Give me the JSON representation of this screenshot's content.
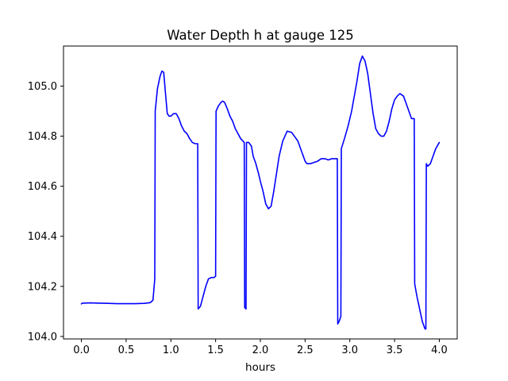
{
  "chart_data": {
    "type": "line",
    "title": "Water Depth h at gauge 125",
    "xlabel": "hours",
    "ylabel": "",
    "xlim": [
      -0.2,
      4.2
    ],
    "ylim": [
      103.99,
      105.16
    ],
    "xticks": [
      0.0,
      0.5,
      1.0,
      1.5,
      2.0,
      2.5,
      3.0,
      3.5,
      4.0
    ],
    "xtick_labels": [
      "0.0",
      "0.5",
      "1.0",
      "1.5",
      "2.0",
      "2.5",
      "3.0",
      "3.5",
      "4.0"
    ],
    "yticks": [
      104.0,
      104.2,
      104.4,
      104.6,
      104.8,
      105.0
    ],
    "ytick_labels": [
      "104.0",
      "104.2",
      "104.4",
      "104.6",
      "104.8",
      "105.0"
    ],
    "grid": false,
    "legend": "none",
    "series": [
      {
        "color": "#0000ff",
        "x": [
          0.0,
          0.01,
          0.1,
          0.2,
          0.3,
          0.4,
          0.5,
          0.6,
          0.7,
          0.77,
          0.8,
          0.82,
          0.825,
          0.85,
          0.88,
          0.9,
          0.92,
          0.94,
          0.96,
          0.98,
          1.0,
          1.03,
          1.06,
          1.09,
          1.12,
          1.15,
          1.18,
          1.21,
          1.24,
          1.27,
          1.3,
          1.305,
          1.33,
          1.36,
          1.39,
          1.42,
          1.45,
          1.48,
          1.5,
          1.505,
          1.53,
          1.56,
          1.58,
          1.6,
          1.63,
          1.66,
          1.69,
          1.72,
          1.75,
          1.78,
          1.82,
          1.825,
          1.84,
          1.845,
          1.87,
          1.9,
          1.92,
          1.95,
          1.98,
          2.0,
          2.03,
          2.06,
          2.09,
          2.12,
          2.15,
          2.18,
          2.21,
          2.25,
          2.3,
          2.35,
          2.38,
          2.42,
          2.46,
          2.5,
          2.52,
          2.56,
          2.6,
          2.64,
          2.68,
          2.72,
          2.76,
          2.8,
          2.84,
          2.86,
          2.865,
          2.88,
          2.9,
          2.905,
          2.94,
          2.98,
          3.02,
          3.05,
          3.08,
          3.11,
          3.14,
          3.17,
          3.2,
          3.23,
          3.26,
          3.29,
          3.32,
          3.35,
          3.38,
          3.41,
          3.44,
          3.47,
          3.5,
          3.53,
          3.56,
          3.6,
          3.63,
          3.66,
          3.69,
          3.72,
          3.725,
          3.75,
          3.78,
          3.81,
          3.84,
          3.85,
          3.855,
          3.87,
          3.9,
          3.93,
          3.96,
          4.0
        ],
        "y": [
          104.13,
          104.133,
          104.134,
          104.133,
          104.132,
          104.131,
          104.131,
          104.131,
          104.132,
          104.135,
          104.145,
          104.23,
          104.9,
          104.99,
          105.04,
          105.06,
          105.055,
          104.97,
          104.89,
          104.88,
          104.88,
          104.89,
          104.89,
          104.87,
          104.84,
          104.82,
          104.81,
          104.79,
          104.775,
          104.77,
          104.77,
          104.11,
          104.12,
          104.16,
          104.2,
          104.23,
          104.235,
          104.235,
          104.24,
          104.9,
          104.92,
          104.935,
          104.94,
          104.935,
          104.91,
          104.88,
          104.86,
          104.83,
          104.81,
          104.79,
          104.775,
          104.115,
          104.11,
          104.775,
          104.775,
          104.76,
          104.72,
          104.69,
          104.65,
          104.62,
          104.58,
          104.53,
          104.51,
          104.52,
          104.58,
          104.65,
          104.72,
          104.78,
          104.82,
          104.815,
          104.8,
          104.78,
          104.74,
          104.7,
          104.69,
          104.69,
          104.695,
          104.7,
          104.71,
          104.71,
          104.705,
          104.71,
          104.71,
          104.71,
          104.05,
          104.06,
          104.08,
          104.75,
          104.79,
          104.84,
          104.9,
          104.96,
          105.02,
          105.09,
          105.12,
          105.1,
          105.05,
          104.97,
          104.89,
          104.83,
          104.81,
          104.8,
          104.8,
          104.82,
          104.86,
          104.91,
          104.945,
          104.96,
          104.97,
          104.96,
          104.93,
          104.9,
          104.87,
          104.87,
          104.21,
          104.16,
          104.11,
          104.06,
          104.03,
          104.03,
          104.69,
          104.68,
          104.69,
          104.72,
          104.75,
          104.775
        ]
      }
    ]
  }
}
